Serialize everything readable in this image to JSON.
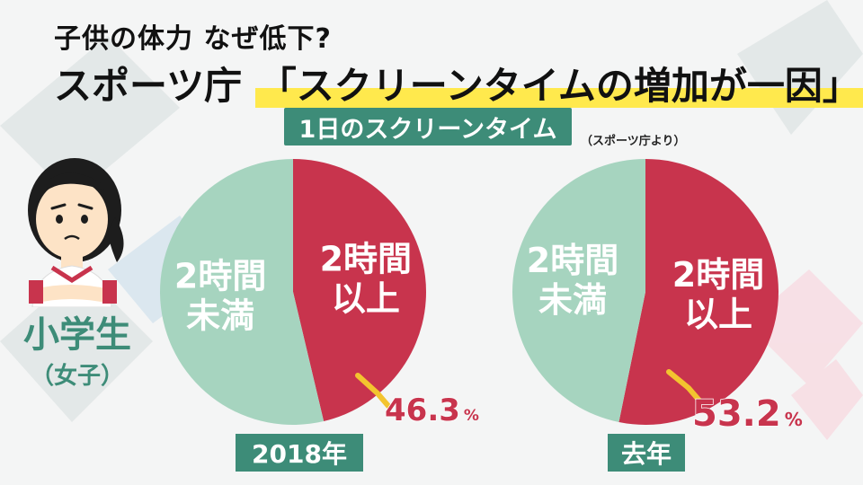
{
  "header": {
    "subtitle": "子供の体力 なぜ低下?",
    "headline_prefix": "スポーツ庁",
    "headline_quote": "「スクリーンタイムの増加が一因」"
  },
  "group": {
    "main": "小学生",
    "sub": "（女子）"
  },
  "source": "（スポーツ庁より）",
  "colors": {
    "under_2h": "#a6d4bf",
    "over_2h": "#c8344d",
    "label_box": "#3d8c78",
    "callout": "#f3c42f",
    "pct_text": "#c8344d"
  },
  "chart_data": {
    "type": "pie",
    "title": "1日のスクリーンタイム",
    "charts": [
      {
        "label": "2018年",
        "slices": [
          {
            "name": "2時間以上",
            "lines": [
              "2時間",
              "以上"
            ],
            "value": 46.3
          },
          {
            "name": "2時間未満",
            "lines": [
              "2時間",
              "未満"
            ],
            "value": 53.7
          }
        ],
        "annotation": {
          "value": "46.3",
          "unit": "%"
        }
      },
      {
        "label": "去年",
        "slices": [
          {
            "name": "2時間以上",
            "lines": [
              "2時間",
              "以上"
            ],
            "value": 53.2
          },
          {
            "name": "2時間未満",
            "lines": [
              "2時間",
              "未満"
            ],
            "value": 46.8
          }
        ],
        "annotation": {
          "value": "53.2",
          "unit": "%"
        }
      }
    ]
  }
}
